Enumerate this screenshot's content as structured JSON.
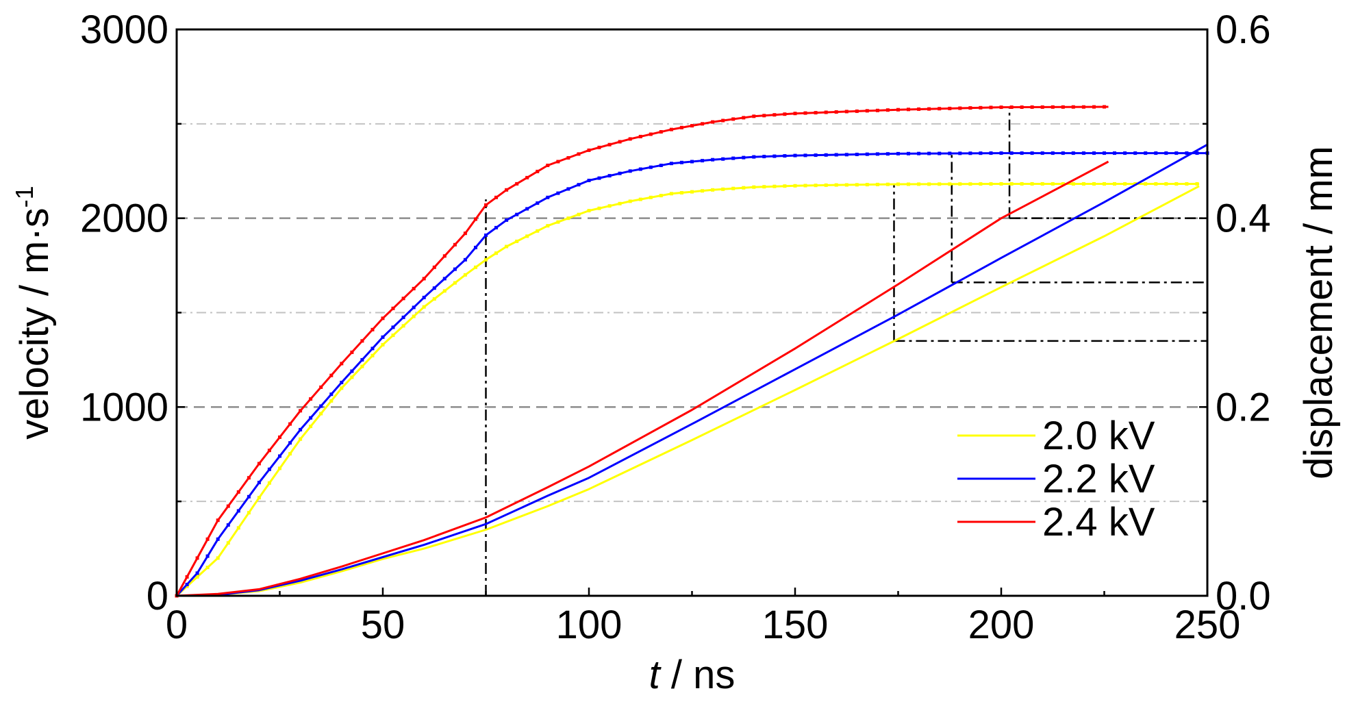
{
  "chart_data": {
    "type": "line",
    "x_axis": {
      "label_var": "t",
      "label_unit": " / ns",
      "range": [
        0,
        250
      ],
      "ticks": [
        0,
        50,
        100,
        150,
        200,
        250
      ],
      "tick_labels": [
        "0",
        "50",
        "100",
        "150",
        "200",
        "250"
      ]
    },
    "y_left": {
      "label": "velocity / m·s",
      "label_sup": "-1",
      "range": [
        0,
        3000
      ],
      "ticks": [
        0,
        1000,
        2000,
        3000
      ],
      "tick_labels": [
        "0",
        "1000",
        "2000",
        "3000"
      ]
    },
    "y_right": {
      "label": "displacement / mm",
      "range": [
        0,
        0.6
      ],
      "ticks": [
        0,
        0.2,
        0.4,
        0.6
      ],
      "tick_labels": [
        "0.0",
        "0.2",
        "0.4",
        "0.6"
      ]
    },
    "grid": {
      "dashed_velocity": [
        1000,
        2000
      ],
      "dashdot_velocity": [
        500,
        1500,
        2500
      ]
    },
    "legend_position": "bottom-right",
    "series": [
      {
        "name": "2.0 kV",
        "color": "#ffff00",
        "velocity": {
          "x": [
            0,
            10,
            20,
            30,
            40,
            50,
            60,
            70,
            75,
            80,
            90,
            100,
            110,
            120,
            130,
            140,
            150,
            160,
            175,
            200,
            225,
            248
          ],
          "y": [
            0,
            200,
            520,
            830,
            1100,
            1330,
            1530,
            1700,
            1780,
            1850,
            1960,
            2040,
            2090,
            2130,
            2150,
            2165,
            2172,
            2176,
            2180,
            2182,
            2182,
            2182
          ]
        },
        "displacement": {
          "x": [
            0,
            10,
            20,
            30,
            40,
            50,
            60,
            75,
            90,
            100,
            125,
            150,
            175,
            200,
            225,
            248
          ],
          "y": [
            0,
            0.001,
            0.005,
            0.014,
            0.026,
            0.039,
            0.05,
            0.07,
            0.095,
            0.113,
            0.165,
            0.218,
            0.272,
            0.327,
            0.381,
            0.434
          ]
        }
      },
      {
        "name": "2.2 kV",
        "color": "#0000ff",
        "velocity": {
          "x": [
            0,
            5,
            10,
            20,
            30,
            40,
            50,
            60,
            70,
            75,
            80,
            90,
            100,
            110,
            120,
            130,
            140,
            150,
            175,
            200,
            225,
            250
          ],
          "y": [
            0,
            120,
            300,
            600,
            880,
            1130,
            1370,
            1580,
            1780,
            1910,
            1990,
            2110,
            2200,
            2250,
            2290,
            2310,
            2325,
            2332,
            2342,
            2345,
            2345,
            2345
          ]
        },
        "displacement": {
          "x": [
            0,
            10,
            20,
            30,
            40,
            50,
            60,
            75,
            90,
            100,
            125,
            150,
            175,
            200,
            225,
            250
          ],
          "y": [
            0,
            0.001,
            0.006,
            0.016,
            0.028,
            0.041,
            0.054,
            0.076,
            0.106,
            0.125,
            0.182,
            0.24,
            0.298,
            0.358,
            0.417,
            0.478
          ]
        }
      },
      {
        "name": "2.4 kV",
        "color": "#ff0000",
        "velocity": {
          "x": [
            0,
            5,
            10,
            20,
            30,
            40,
            50,
            60,
            70,
            75,
            80,
            90,
            100,
            110,
            120,
            130,
            140,
            150,
            175,
            200,
            226
          ],
          "y": [
            0,
            200,
            400,
            700,
            980,
            1230,
            1470,
            1680,
            1920,
            2070,
            2150,
            2280,
            2360,
            2420,
            2470,
            2510,
            2540,
            2555,
            2575,
            2588,
            2590
          ]
        },
        "displacement": {
          "x": [
            0,
            10,
            20,
            30,
            40,
            50,
            60,
            75,
            90,
            100,
            125,
            150,
            175,
            200,
            226
          ],
          "y": [
            0,
            0.002,
            0.007,
            0.018,
            0.031,
            0.045,
            0.059,
            0.083,
            0.115,
            0.137,
            0.197,
            0.262,
            0.33,
            0.4,
            0.46
          ]
        }
      }
    ],
    "annotations": {
      "verticals": [
        {
          "x": 75,
          "y_from": 0,
          "y_to": 2100
        },
        {
          "x": 174,
          "y_from": 1350,
          "y_to": 2180
        },
        {
          "x": 188,
          "y_from": 1660,
          "y_to": 2345
        },
        {
          "x": 202,
          "y_from": 2000,
          "y_to": 2590
        }
      ],
      "horizontals": [
        {
          "y": 1350,
          "x_from": 174,
          "x_to": 250
        },
        {
          "y": 1660,
          "x_from": 188,
          "x_to": 250
        },
        {
          "y": 2000,
          "x_from": 202,
          "x_to": 250
        }
      ]
    }
  }
}
